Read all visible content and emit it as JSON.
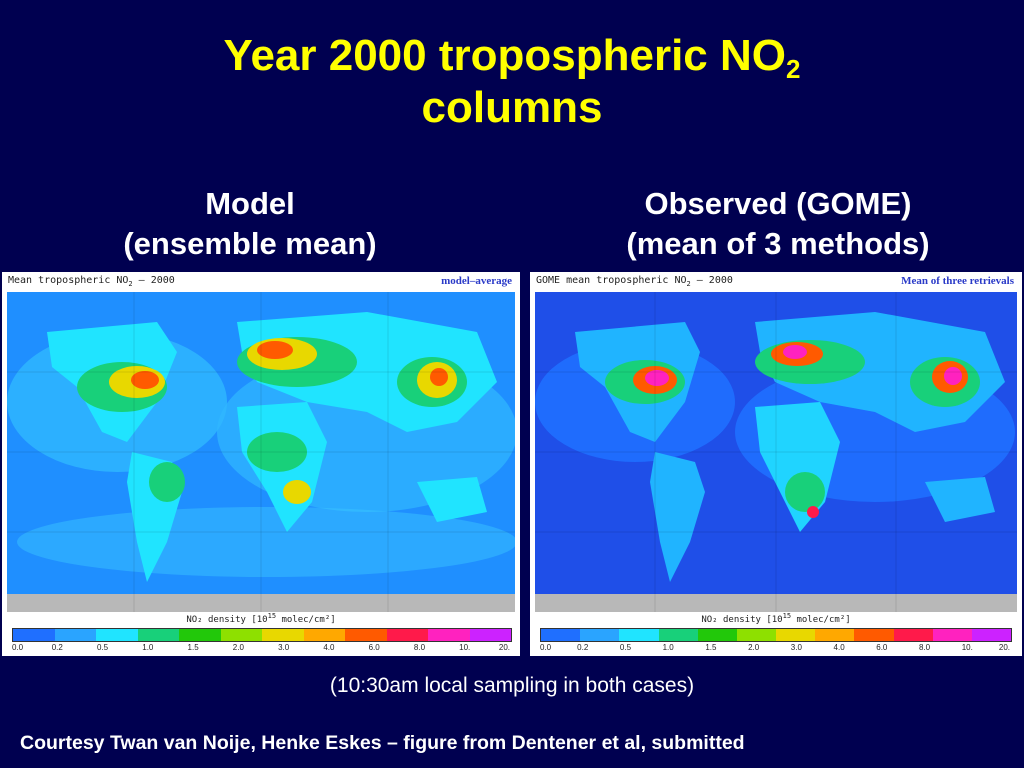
{
  "title": {
    "line1_main": "Year 2000 tropospheric NO",
    "line1_sub": "2",
    "line2": "columns"
  },
  "left": {
    "heading_line1": "Model",
    "heading_line2": "(ensemble mean)",
    "map_title_main": "Mean tropospheric NO",
    "map_title_sub": "2",
    "map_title_rest": " – 2000",
    "map_tag": "model–average"
  },
  "right": {
    "heading_line1": "Observed (GOME)",
    "heading_line2": "(mean of 3 methods)",
    "map_title_main": "GOME mean tropospheric NO",
    "map_title_sub": "2",
    "map_title_rest": " – 2000",
    "map_tag": "Mean of three retrievals"
  },
  "legend": {
    "label_pre": "NO₂ density [10",
    "label_exp": "15",
    "label_post": " molec/cm²]",
    "colors": [
      "#1f6fff",
      "#2aa4ff",
      "#20e4ff",
      "#18d07a",
      "#22c80a",
      "#8ee000",
      "#e8d800",
      "#ffa800",
      "#ff5a00",
      "#ff1a4a",
      "#ff22bf",
      "#cc22ff"
    ],
    "ticks": [
      "0.0",
      "0.2",
      "0.5",
      "1.0",
      "1.5",
      "2.0",
      "3.0",
      "4.0",
      "6.0",
      "8.0",
      "10.",
      "20."
    ]
  },
  "note": "(10:30am local sampling in both cases)",
  "credit": "Courtesy Twan van Noije, Henke Eskes – figure from Dentener et al, submitted"
}
